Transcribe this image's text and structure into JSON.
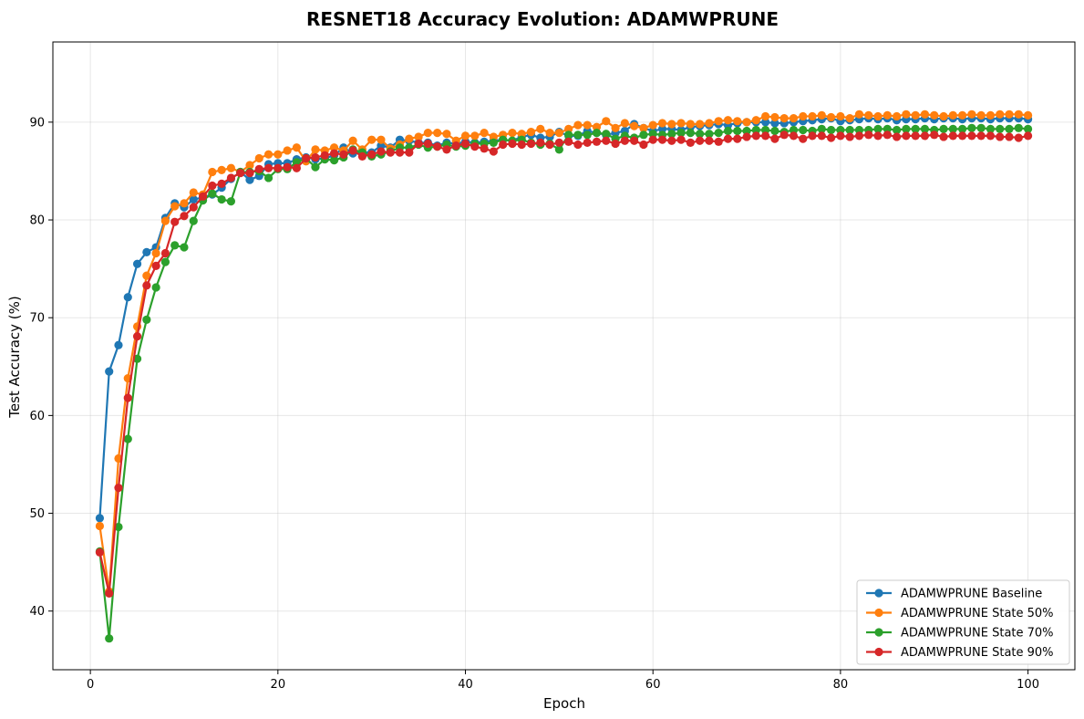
{
  "chart_data": {
    "type": "line",
    "title": "RESNET18 Accuracy Evolution: ADAMWPRUNE",
    "xlabel": "Epoch",
    "ylabel": "Test Accuracy (%)",
    "xlim": [
      -4,
      105
    ],
    "ylim": [
      34,
      98.2
    ],
    "xticks": [
      0,
      20,
      40,
      60,
      80,
      100
    ],
    "yticks": [
      40,
      50,
      60,
      70,
      80,
      90
    ],
    "grid": true,
    "legend_position": "bottom-right",
    "series": [
      {
        "name": "ADAMWPRUNE Baseline",
        "color": "#1f77b4",
        "x": [
          1,
          2,
          3,
          4,
          5,
          6,
          7,
          8,
          9,
          10,
          11,
          12,
          13,
          14,
          15,
          16,
          17,
          18,
          19,
          20,
          21,
          22,
          23,
          24,
          25,
          26,
          27,
          28,
          29,
          30,
          31,
          32,
          33,
          34,
          35,
          36,
          37,
          38,
          39,
          40,
          41,
          42,
          43,
          44,
          45,
          46,
          47,
          48,
          49,
          50,
          51,
          52,
          53,
          54,
          55,
          56,
          57,
          58,
          59,
          60,
          61,
          62,
          63,
          64,
          65,
          66,
          67,
          68,
          69,
          70,
          71,
          72,
          73,
          74,
          75,
          76,
          77,
          78,
          79,
          80,
          81,
          82,
          83,
          84,
          85,
          86,
          87,
          88,
          89,
          90,
          91,
          92,
          93,
          94,
          95,
          96,
          97,
          98,
          99,
          100
        ],
        "values": [
          49.5,
          64.5,
          67.2,
          72.1,
          75.5,
          76.7,
          77.2,
          80.2,
          81.7,
          81.3,
          82.1,
          82.3,
          82.6,
          83.3,
          84.2,
          84.9,
          84.1,
          84.5,
          85.7,
          85.8,
          85.8,
          86.2,
          86.4,
          86.2,
          86.3,
          86.6,
          87.4,
          86.8,
          86.9,
          86.9,
          87.6,
          87.4,
          88.2,
          88.1,
          87.9,
          87.9,
          87.6,
          87.9,
          87.8,
          88.0,
          87.9,
          88.0,
          88.1,
          88.2,
          88.1,
          88.5,
          88.7,
          88.4,
          88.5,
          89.0,
          88.6,
          88.6,
          89.1,
          88.9,
          88.7,
          88.9,
          89.1,
          89.8,
          89.4,
          89.1,
          89.3,
          89.3,
          89.2,
          89.5,
          89.6,
          89.7,
          89.8,
          89.7,
          89.9,
          90.0,
          90.0,
          90.0,
          89.9,
          89.9,
          90.0,
          90.1,
          90.2,
          90.3,
          90.4,
          90.1,
          90.2,
          90.3,
          90.4,
          90.3,
          90.4,
          90.2,
          90.3,
          90.3,
          90.4,
          90.3,
          90.4,
          90.4,
          90.3,
          90.4,
          90.4,
          90.3,
          90.4,
          90.4,
          90.4,
          90.3
        ]
      },
      {
        "name": "ADAMWPRUNE State 50%",
        "color": "#ff7f0e",
        "x": [
          1,
          2,
          3,
          4,
          5,
          6,
          7,
          8,
          9,
          10,
          11,
          12,
          13,
          14,
          15,
          16,
          17,
          18,
          19,
          20,
          21,
          22,
          23,
          24,
          25,
          26,
          27,
          28,
          29,
          30,
          31,
          32,
          33,
          34,
          35,
          36,
          37,
          38,
          39,
          40,
          41,
          42,
          43,
          44,
          45,
          46,
          47,
          48,
          49,
          50,
          51,
          52,
          53,
          54,
          55,
          56,
          57,
          58,
          59,
          60,
          61,
          62,
          63,
          64,
          65,
          66,
          67,
          68,
          69,
          70,
          71,
          72,
          73,
          74,
          75,
          76,
          77,
          78,
          79,
          80,
          81,
          82,
          83,
          84,
          85,
          86,
          87,
          88,
          89,
          90,
          91,
          92,
          93,
          94,
          95,
          96,
          97,
          98,
          99,
          100
        ],
        "values": [
          48.7,
          42.0,
          55.6,
          63.8,
          69.1,
          74.3,
          76.6,
          79.9,
          81.4,
          81.7,
          82.8,
          82.6,
          84.9,
          85.1,
          85.3,
          84.9,
          85.6,
          86.3,
          86.7,
          86.7,
          87.1,
          87.4,
          86.0,
          87.2,
          87.1,
          87.4,
          87.1,
          88.1,
          87.2,
          88.2,
          88.2,
          87.3,
          87.7,
          88.3,
          88.5,
          88.9,
          88.9,
          88.8,
          88.1,
          88.6,
          88.6,
          88.9,
          88.5,
          88.7,
          88.9,
          88.8,
          89.0,
          89.3,
          88.9,
          88.9,
          89.3,
          89.7,
          89.7,
          89.5,
          90.1,
          89.4,
          89.9,
          89.6,
          89.4,
          89.7,
          89.9,
          89.8,
          89.9,
          89.8,
          89.8,
          89.9,
          90.1,
          90.2,
          90.1,
          90.0,
          90.2,
          90.6,
          90.5,
          90.4,
          90.4,
          90.6,
          90.6,
          90.7,
          90.5,
          90.6,
          90.4,
          90.8,
          90.7,
          90.6,
          90.7,
          90.6,
          90.8,
          90.7,
          90.8,
          90.7,
          90.6,
          90.7,
          90.7,
          90.8,
          90.7,
          90.7,
          90.8,
          90.8,
          90.8,
          90.7
        ]
      },
      {
        "name": "ADAMWPRUNE State 70%",
        "color": "#2ca02c",
        "x": [
          1,
          2,
          3,
          4,
          5,
          6,
          7,
          8,
          9,
          10,
          11,
          12,
          13,
          14,
          15,
          16,
          17,
          18,
          19,
          20,
          21,
          22,
          23,
          24,
          25,
          26,
          27,
          28,
          29,
          30,
          31,
          32,
          33,
          34,
          35,
          36,
          37,
          38,
          39,
          40,
          41,
          42,
          43,
          44,
          45,
          46,
          47,
          48,
          49,
          50,
          51,
          52,
          53,
          54,
          55,
          56,
          57,
          58,
          59,
          60,
          61,
          62,
          63,
          64,
          65,
          66,
          67,
          68,
          69,
          70,
          71,
          72,
          73,
          74,
          75,
          76,
          77,
          78,
          79,
          80,
          81,
          82,
          83,
          84,
          85,
          86,
          87,
          88,
          89,
          90,
          91,
          92,
          93,
          94,
          95,
          96,
          97,
          98,
          99,
          100
        ],
        "values": [
          46.1,
          37.2,
          48.6,
          57.6,
          65.8,
          69.8,
          73.1,
          75.7,
          77.4,
          77.2,
          79.9,
          82.0,
          82.7,
          82.1,
          81.9,
          84.9,
          84.9,
          85.0,
          84.3,
          85.2,
          85.2,
          85.9,
          86.3,
          85.4,
          86.2,
          86.1,
          86.4,
          87.2,
          86.9,
          86.5,
          86.7,
          87.0,
          87.4,
          87.4,
          87.7,
          87.4,
          87.5,
          87.7,
          87.5,
          87.6,
          87.8,
          87.8,
          87.9,
          88.2,
          88.1,
          88.2,
          87.9,
          87.7,
          87.8,
          87.2,
          88.7,
          88.7,
          88.7,
          88.9,
          88.8,
          88.3,
          88.6,
          88.4,
          88.7,
          88.8,
          88.7,
          88.8,
          88.9,
          88.9,
          88.8,
          88.8,
          88.9,
          89.1,
          89.1,
          89.1,
          89.2,
          89.2,
          89.1,
          89.0,
          89.2,
          89.2,
          89.1,
          89.3,
          89.2,
          89.2,
          89.2,
          89.2,
          89.2,
          89.3,
          89.3,
          89.2,
          89.3,
          89.3,
          89.3,
          89.2,
          89.3,
          89.3,
          89.3,
          89.4,
          89.4,
          89.3,
          89.3,
          89.3,
          89.4,
          89.3
        ]
      },
      {
        "name": "ADAMWPRUNE State 90%",
        "color": "#d62728",
        "x": [
          1,
          2,
          3,
          4,
          5,
          6,
          7,
          8,
          9,
          10,
          11,
          12,
          13,
          14,
          15,
          16,
          17,
          18,
          19,
          20,
          21,
          22,
          23,
          24,
          25,
          26,
          27,
          28,
          29,
          30,
          31,
          32,
          33,
          34,
          35,
          36,
          37,
          38,
          39,
          40,
          41,
          42,
          43,
          44,
          45,
          46,
          47,
          48,
          49,
          50,
          51,
          52,
          53,
          54,
          55,
          56,
          57,
          58,
          59,
          60,
          61,
          62,
          63,
          64,
          65,
          66,
          67,
          68,
          69,
          70,
          71,
          72,
          73,
          74,
          75,
          76,
          77,
          78,
          79,
          80,
          81,
          82,
          83,
          84,
          85,
          86,
          87,
          88,
          89,
          90,
          91,
          92,
          93,
          94,
          95,
          96,
          97,
          98,
          99,
          100
        ],
        "values": [
          46.0,
          41.8,
          52.6,
          61.8,
          68.1,
          73.3,
          75.3,
          76.6,
          79.8,
          80.4,
          81.3,
          82.4,
          83.5,
          83.7,
          84.3,
          84.8,
          84.8,
          85.2,
          85.3,
          85.3,
          85.4,
          85.3,
          86.3,
          86.4,
          86.6,
          86.8,
          86.7,
          87.1,
          86.5,
          86.7,
          87.0,
          86.9,
          86.9,
          86.9,
          87.8,
          87.8,
          87.5,
          87.2,
          87.6,
          87.8,
          87.5,
          87.3,
          87.0,
          87.7,
          87.8,
          87.7,
          87.8,
          87.9,
          87.7,
          87.9,
          88.0,
          87.7,
          87.9,
          88.0,
          88.1,
          87.8,
          88.1,
          88.1,
          87.7,
          88.2,
          88.2,
          88.1,
          88.2,
          87.9,
          88.1,
          88.1,
          88.0,
          88.3,
          88.3,
          88.5,
          88.6,
          88.6,
          88.3,
          88.7,
          88.6,
          88.3,
          88.6,
          88.6,
          88.4,
          88.6,
          88.5,
          88.6,
          88.7,
          88.6,
          88.7,
          88.5,
          88.6,
          88.6,
          88.6,
          88.7,
          88.5,
          88.6,
          88.6,
          88.6,
          88.6,
          88.6,
          88.5,
          88.5,
          88.4,
          88.6
        ]
      }
    ]
  }
}
